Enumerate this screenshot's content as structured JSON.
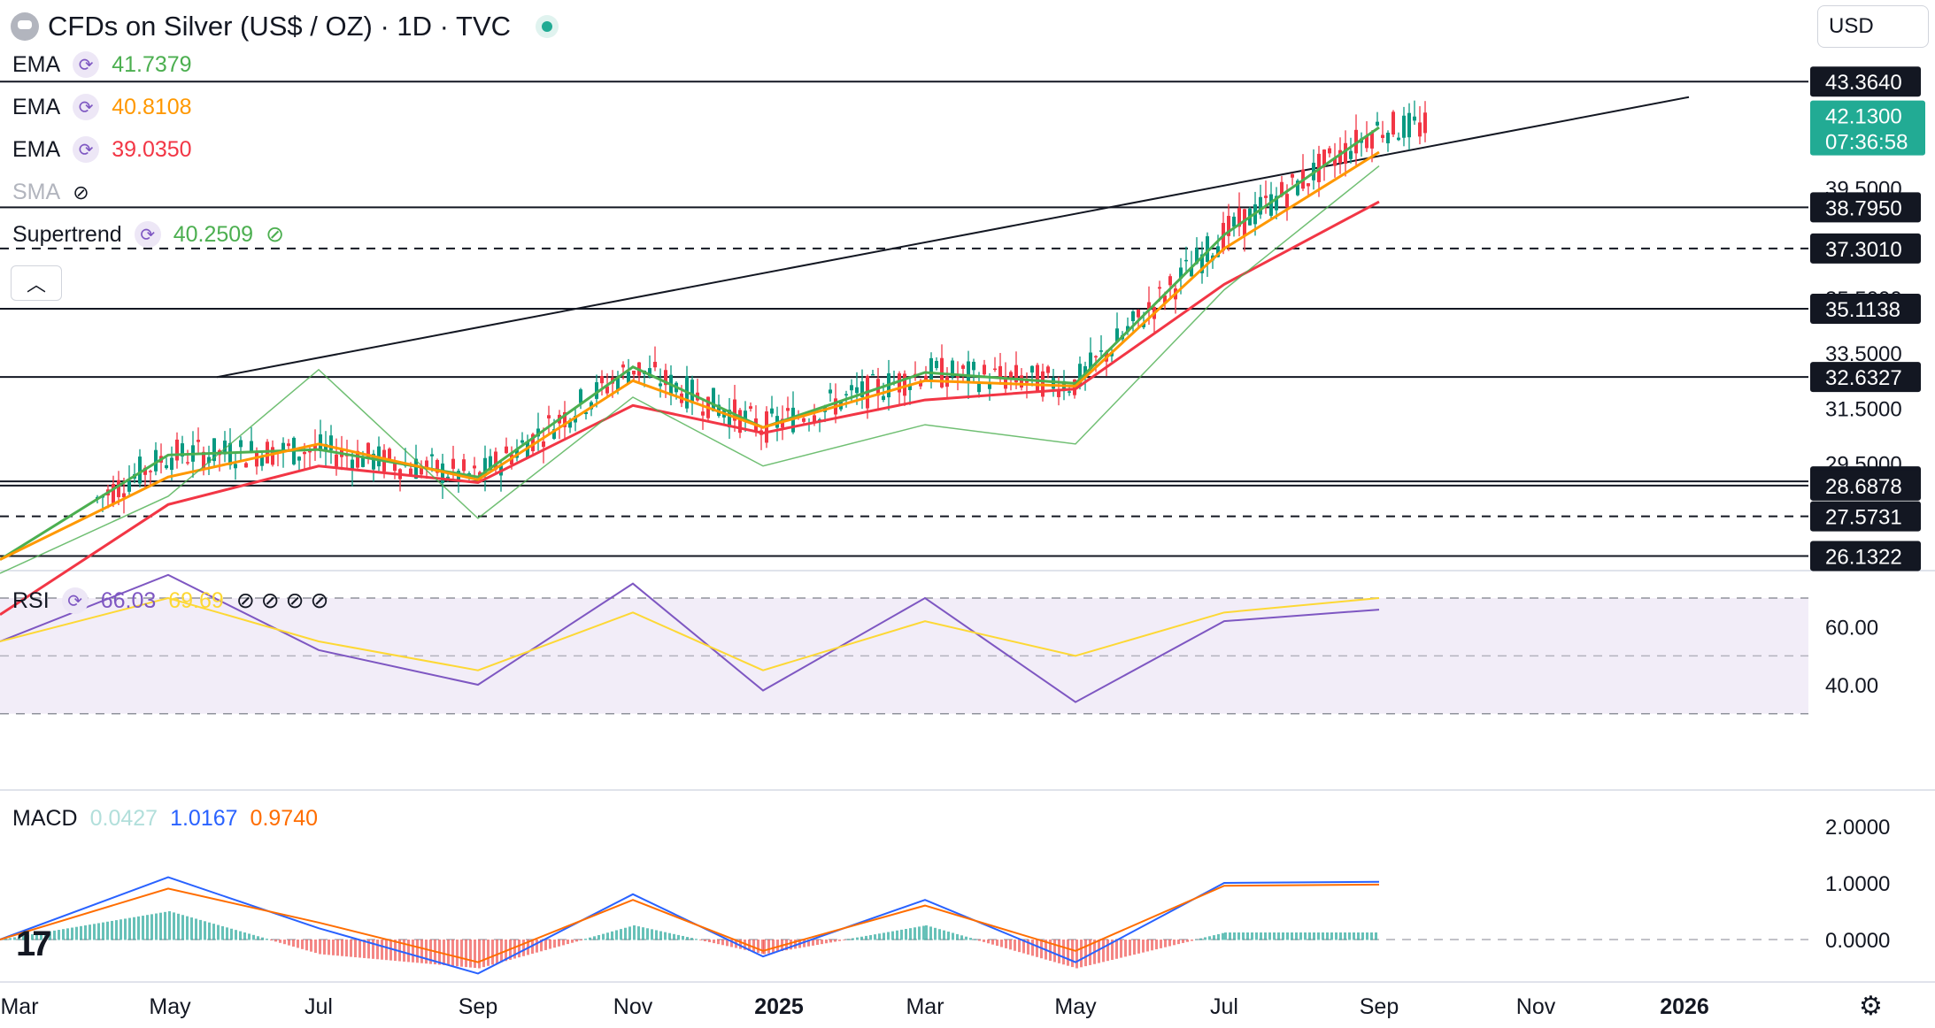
{
  "header": {
    "title": "CFDs on Silver (US$ / OZ) · 1D · TVC",
    "currency": "USD"
  },
  "legend": {
    "ema1": {
      "label": "EMA",
      "value": "41.7379",
      "color": "#4caf50"
    },
    "ema2": {
      "label": "EMA",
      "value": "40.8108",
      "color": "#ff9800"
    },
    "ema3": {
      "label": "EMA",
      "value": "39.0350",
      "color": "#f23645"
    },
    "sma": {
      "label": "SMA"
    },
    "supertrend": {
      "label": "Supertrend",
      "value": "40.2509"
    },
    "rsi": {
      "label": "RSI",
      "value1": "66.03",
      "value2": "69.69"
    },
    "macd": {
      "label": "MACD",
      "hist": "0.0427",
      "macd": "1.0167",
      "signal": "0.9740"
    }
  },
  "chart_data": {
    "type": "line",
    "title": "CFDs on Silver (US$ / OZ) · 1D · TVC",
    "price_axis_ticks": [
      "39.5000",
      "35.5000",
      "33.5000",
      "31.5000",
      "29.5000"
    ],
    "rsi_axis_ticks": [
      "60.00",
      "40.00"
    ],
    "macd_axis_ticks": [
      "2.0000",
      "1.0000",
      "0.0000"
    ],
    "x_ticks": [
      "Mar",
      "May",
      "Jul",
      "Sep",
      "Nov",
      "2025",
      "Mar",
      "May",
      "Jul",
      "Sep",
      "Nov",
      "2026"
    ],
    "horizontal_levels": [
      {
        "value": "43.3640",
        "style": "solid"
      },
      {
        "value": "38.7950",
        "style": "solid"
      },
      {
        "value": "37.3010",
        "style": "dashed"
      },
      {
        "value": "35.1138",
        "style": "solid"
      },
      {
        "value": "32.6327",
        "style": "solid"
      },
      {
        "value": "28.8428",
        "style": "solid"
      },
      {
        "value": "28.6878",
        "style": "solid"
      },
      {
        "value": "27.5731",
        "style": "dashed"
      },
      {
        "value": "26.1322",
        "style": "solid"
      }
    ],
    "last_price": {
      "value": "42.1300",
      "countdown": "07:36:58",
      "color": "#22ab94"
    },
    "series": [
      {
        "name": "EMA",
        "color": "#4caf50",
        "x": [
          "Mar",
          "May",
          "Jul",
          "Sep",
          "Nov",
          "2025",
          "Mar",
          "May",
          "Jul",
          "Sep"
        ],
        "values": [
          26.0,
          29.8,
          30.0,
          29.0,
          33.0,
          30.8,
          32.8,
          32.4,
          37.8,
          41.7
        ]
      },
      {
        "name": "EMA",
        "color": "#ff9800",
        "x": [
          "Mar",
          "May",
          "Jul",
          "Sep",
          "Nov",
          "2025",
          "Mar",
          "May",
          "Jul",
          "Sep"
        ],
        "values": [
          26.0,
          29.0,
          30.2,
          28.9,
          32.5,
          30.8,
          32.5,
          32.3,
          37.3,
          40.8
        ]
      },
      {
        "name": "EMA",
        "color": "#f23645",
        "x": [
          "Mar",
          "May",
          "Jul",
          "Sep",
          "Nov",
          "2025",
          "Mar",
          "May",
          "Jul",
          "Sep"
        ],
        "values": [
          24.0,
          28.0,
          29.4,
          28.8,
          31.6,
          30.6,
          31.8,
          32.2,
          36.0,
          39.0
        ]
      },
      {
        "name": "Supertrend",
        "color": "#4caf50",
        "x": [
          "Mar",
          "May",
          "Jul",
          "Sep",
          "Nov",
          "2025",
          "Mar",
          "May",
          "Jul",
          "Sep"
        ],
        "values": [
          25.5,
          28.3,
          32.9,
          27.5,
          31.9,
          29.4,
          30.9,
          30.2,
          35.8,
          40.3
        ]
      }
    ],
    "rsi": {
      "x": [
        "Mar",
        "May",
        "Jul",
        "Sep",
        "Nov",
        "2025",
        "Mar",
        "May",
        "Jul",
        "Sep"
      ],
      "values": [
        55,
        78,
        52,
        40,
        75,
        38,
        70,
        34,
        62,
        66
      ],
      "signal": [
        55,
        70,
        55,
        45,
        65,
        45,
        62,
        50,
        65,
        70
      ],
      "upper": 70,
      "mid": 50,
      "lower": 30
    },
    "macd": {
      "x": [
        "Mar",
        "May",
        "Jul",
        "Sep",
        "Nov",
        "2025",
        "Mar",
        "May",
        "Jul",
        "Sep"
      ],
      "macd": [
        0.0,
        1.1,
        0.2,
        -0.6,
        0.8,
        -0.3,
        0.7,
        -0.4,
        1.0,
        1.02
      ],
      "signal": [
        0.0,
        0.9,
        0.3,
        -0.4,
        0.7,
        -0.2,
        0.6,
        -0.2,
        0.95,
        0.97
      ]
    }
  }
}
